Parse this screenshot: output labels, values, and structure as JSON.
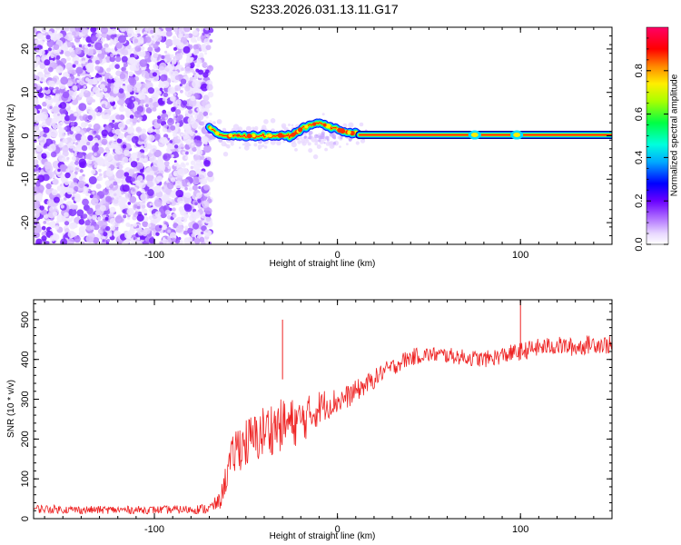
{
  "figure_title": "S233.2026.031.13.11.G17",
  "colors": {
    "snr_line": "#ee2222",
    "carrier": "#ff0000",
    "noise": "#8800ff",
    "axis": "#000000"
  },
  "chart_data": [
    {
      "type": "heatmap",
      "title": "S233.2026.031.13.11.G17",
      "xlabel": "Height of straight line (km)",
      "ylabel": "Frequency (Hz)",
      "xlim": [
        -166,
        150
      ],
      "ylim": [
        -25,
        25
      ],
      "xticks": [
        -100,
        0,
        100
      ],
      "xtick_labels": [
        "-100",
        "0",
        "100"
      ],
      "yticks": [
        -20,
        -10,
        0,
        10,
        20
      ],
      "ytick_labels": [
        "-20",
        "-10",
        "0",
        "10",
        "20"
      ],
      "noise_region_x": [
        -166,
        -69
      ],
      "wobbly_segment": {
        "x": [
          -70,
          -64,
          -55,
          -45,
          -35,
          -25,
          -18,
          -10,
          -4,
          0,
          5,
          12
        ],
        "freq_hz": [
          2,
          0,
          0,
          0,
          0,
          0,
          2,
          3,
          2,
          1.5,
          0.8,
          0.4
        ]
      },
      "steady_segment": {
        "x": [
          12,
          150
        ],
        "freq_hz": 0.2,
        "small_bumps_x": [
          75,
          98
        ]
      },
      "colorbar": {
        "label": "Normalized spectral amplitude",
        "ticks": [
          0.0,
          0.2,
          0.4,
          0.6,
          0.8
        ],
        "tick_labels": [
          "0.0",
          "0.2",
          "0.4",
          "0.6",
          "0.8"
        ],
        "range": [
          0,
          1
        ]
      }
    },
    {
      "type": "line",
      "xlabel": "Height of straight line (km)",
      "ylabel": "SNR (10 * v/v)",
      "xlim": [
        -166,
        150
      ],
      "ylim": [
        0,
        550
      ],
      "xticks": [
        -100,
        0,
        100
      ],
      "xtick_labels": [
        "-100",
        "0",
        "100"
      ],
      "yticks": [
        0,
        100,
        200,
        300,
        400,
        500
      ],
      "ytick_labels": [
        "0",
        "100",
        "200",
        "300",
        "400",
        "500"
      ],
      "series": [
        {
          "name": "SNR",
          "x": [
            -166,
            -140,
            -120,
            -100,
            -80,
            -70,
            -64,
            -60,
            -55,
            -50,
            -45,
            -40,
            -35,
            -30,
            -25,
            -20,
            -15,
            -10,
            -5,
            0,
            5,
            10,
            15,
            20,
            25,
            30,
            35,
            40,
            45,
            50,
            55,
            60,
            70,
            80,
            90,
            100,
            110,
            120,
            130,
            140,
            150
          ],
          "y": [
            25,
            22,
            22,
            22,
            23,
            25,
            45,
            120,
            180,
            190,
            200,
            220,
            230,
            235,
            240,
            245,
            260,
            280,
            290,
            295,
            305,
            320,
            335,
            350,
            370,
            380,
            395,
            405,
            410,
            412,
            412,
            410,
            405,
            400,
            410,
            420,
            430,
            435,
            430,
            440,
            435
          ],
          "noise_amplitude": [
            20,
            18,
            18,
            18,
            20,
            25,
            40,
            80,
            110,
            120,
            120,
            125,
            125,
            120,
            115,
            105,
            95,
            80,
            70,
            60,
            55,
            50,
            45,
            45,
            40,
            40,
            40,
            40,
            38,
            36,
            36,
            36,
            36,
            38,
            40,
            42,
            42,
            42,
            42,
            42,
            42
          ],
          "peaks": [
            {
              "x": -30,
              "y": 500
            },
            {
              "x": 100,
              "y": 550
            }
          ]
        }
      ]
    }
  ]
}
